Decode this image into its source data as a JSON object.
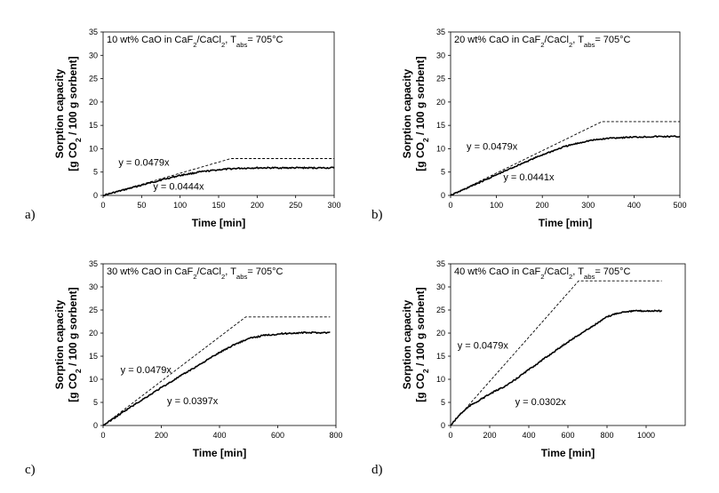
{
  "chart_data": [
    {
      "type": "line",
      "panel_label": "a)",
      "title_parts": [
        "10 wt% CaO in CaF",
        "2",
        "/CaCl",
        "2",
        ", T",
        "abs",
        "= 705°C"
      ],
      "xlabel": "Time [min]",
      "ylabel_line1": "Sorption capacity",
      "ylabel_parts": [
        "[g CO",
        "2",
        " / 100 g sorbent]"
      ],
      "xlim": [
        0,
        300
      ],
      "ylim": [
        0,
        35
      ],
      "xticks": [
        0,
        50,
        100,
        150,
        200,
        250,
        300
      ],
      "yticks": [
        0,
        5,
        10,
        15,
        20,
        25,
        30,
        35
      ],
      "grid": false,
      "series": [
        {
          "style": "dashed",
          "x": [
            0,
            166,
            300
          ],
          "y": [
            0,
            7.9,
            7.9
          ]
        },
        {
          "style": "solid-noisy",
          "x": [
            0,
            25,
            50,
            75,
            100,
            125,
            150,
            175,
            200,
            225,
            250,
            275,
            300
          ],
          "y": [
            0,
            1.1,
            2.2,
            3.3,
            4.3,
            5.0,
            5.5,
            5.8,
            5.9,
            5.9,
            5.9,
            5.9,
            5.9
          ]
        }
      ],
      "annotations": [
        {
          "text": "y = 0.0479x",
          "x": 20,
          "y": 6.4
        },
        {
          "text": "y = 0.0444x",
          "x": 65,
          "y": 1.2
        }
      ]
    },
    {
      "type": "line",
      "panel_label": "b)",
      "title_parts": [
        "20 wt% CaO in CaF",
        "2",
        "/CaCl",
        "2",
        ", T",
        "abs",
        "= 705°C"
      ],
      "xlabel": "Time [min]",
      "ylabel_line1": "Sorption capacity",
      "ylabel_parts": [
        "[g CO",
        "2",
        " / 100 g sorbent]"
      ],
      "xlim": [
        0,
        500
      ],
      "ylim": [
        0,
        35
      ],
      "xticks": [
        0,
        100,
        200,
        300,
        400,
        500
      ],
      "yticks": [
        0,
        5,
        10,
        15,
        20,
        25,
        30,
        35
      ],
      "grid": false,
      "series": [
        {
          "style": "dashed",
          "x": [
            0,
            330,
            500
          ],
          "y": [
            0,
            15.8,
            15.8
          ]
        },
        {
          "style": "solid-noisy",
          "x": [
            0,
            50,
            100,
            150,
            200,
            250,
            300,
            350,
            400,
            450,
            500
          ],
          "y": [
            0,
            2.2,
            4.4,
            6.6,
            8.7,
            10.5,
            11.7,
            12.3,
            12.5,
            12.6,
            12.6
          ]
        }
      ],
      "annotations": [
        {
          "text": "y = 0.0479x",
          "x": 35,
          "y": 9.8
        },
        {
          "text": "y = 0.0441x",
          "x": 115,
          "y": 3.2
        }
      ]
    },
    {
      "type": "line",
      "panel_label": "c)",
      "title_parts": [
        "30 wt% CaO in CaF",
        "2",
        "/CaCl",
        "2",
        ", T",
        "abs",
        "= 705°C"
      ],
      "xlabel": "Time [min]",
      "ylabel_line1": "Sorption capacity",
      "ylabel_parts": [
        "[g CO",
        "2",
        " / 100 g sorbent]"
      ],
      "xlim": [
        0,
        800
      ],
      "ylim": [
        0,
        35
      ],
      "xticks": [
        0,
        200,
        400,
        600,
        800
      ],
      "yticks": [
        0,
        5,
        10,
        15,
        20,
        25,
        30,
        35
      ],
      "grid": false,
      "series": [
        {
          "style": "dashed",
          "x": [
            0,
            490,
            780
          ],
          "y": [
            0,
            23.5,
            23.5
          ]
        },
        {
          "style": "solid-noisy",
          "x": [
            0,
            50,
            100,
            150,
            200,
            250,
            300,
            350,
            400,
            450,
            500,
            550,
            600,
            650,
            700,
            750,
            780
          ],
          "y": [
            0,
            2.1,
            4.2,
            6.2,
            8.2,
            10.1,
            12.0,
            13.9,
            15.8,
            17.5,
            18.8,
            19.5,
            19.8,
            20.0,
            20.1,
            20.1,
            20.1
          ]
        }
      ],
      "annotations": [
        {
          "text": "y = 0.0479x",
          "x": 60,
          "y": 11.3
        },
        {
          "text": "y = 0.0397x",
          "x": 220,
          "y": 4.6
        }
      ]
    },
    {
      "type": "line",
      "panel_label": "d)",
      "title_parts": [
        "40 wt% CaO in CaF",
        "2",
        "/CaCl",
        "2",
        ", T",
        "abs",
        "= 705°C"
      ],
      "xlabel": "Time [min]",
      "ylabel_line1": "Sorption capacity",
      "ylabel_parts": [
        "[g CO",
        "2",
        " / 100 g sorbent]"
      ],
      "xlim": [
        0,
        1200
      ],
      "ylim": [
        0,
        35
      ],
      "xticks": [
        0,
        200,
        400,
        600,
        800,
        1000
      ],
      "yticks": [
        0,
        5,
        10,
        15,
        20,
        25,
        30,
        35
      ],
      "grid": false,
      "series": [
        {
          "style": "dashed",
          "x": [
            0,
            655,
            1080
          ],
          "y": [
            0,
            31.3,
            31.3
          ]
        },
        {
          "style": "solid-noisy",
          "x": [
            0,
            50,
            100,
            200,
            300,
            400,
            500,
            600,
            700,
            760,
            800,
            850,
            900,
            950,
            1000,
            1080
          ],
          "y": [
            0,
            2.5,
            4.3,
            6.8,
            9.0,
            12.1,
            15.1,
            18.1,
            20.8,
            22.4,
            23.5,
            24.3,
            24.7,
            24.8,
            24.8,
            24.8
          ]
        }
      ],
      "annotations": [
        {
          "text": "y = 0.0479x",
          "x": 35,
          "y": 16.6
        },
        {
          "text": "y = 0.0302x",
          "x": 330,
          "y": 4.4
        }
      ]
    }
  ]
}
